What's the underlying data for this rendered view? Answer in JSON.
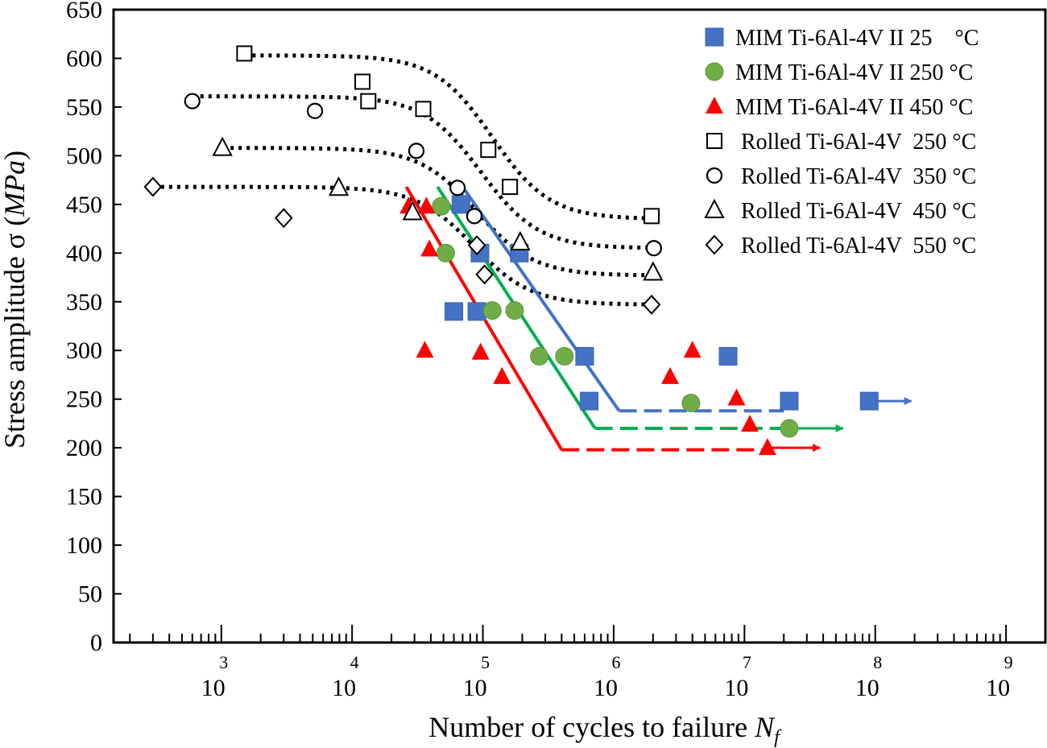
{
  "chart_data": {
    "type": "scatter",
    "xlabel": "Number of cycles to failure N_f",
    "xlabel_main": "Number of cycles to failure ",
    "xlabel_var": "N",
    "xlabel_sub": "f",
    "ylabel_main": "Stress amplitude σ (",
    "ylabel_var": "MPa",
    "ylabel_end": ")",
    "x_scale": "log",
    "xlim": [
      150,
      2000000000
    ],
    "ylim": [
      0,
      650
    ],
    "y_ticks": [
      {
        "v": 0,
        "label": "0"
      },
      {
        "v": 50,
        "label": "50"
      },
      {
        "v": 100,
        "label": "100"
      },
      {
        "v": 150,
        "label": "150"
      },
      {
        "v": 200,
        "label": "200"
      },
      {
        "v": 250,
        "label": "250"
      },
      {
        "v": 300,
        "label": "300"
      },
      {
        "v": 350,
        "label": "350"
      },
      {
        "v": 400,
        "label": "400"
      },
      {
        "v": 450,
        "label": "450"
      },
      {
        "v": 500,
        "label": "500"
      },
      {
        "v": 550,
        "label": "550"
      },
      {
        "v": 600,
        "label": "600"
      },
      {
        "v": 650,
        "label": "650"
      }
    ],
    "x_ticks": [
      {
        "v": 1000,
        "base": "10",
        "exp": "3"
      },
      {
        "v": 10000,
        "base": "10",
        "exp": "4"
      },
      {
        "v": 100000,
        "base": "10",
        "exp": "5"
      },
      {
        "v": 1000000,
        "base": "10",
        "exp": "6"
      },
      {
        "v": 10000000,
        "base": "10",
        "exp": "7"
      },
      {
        "v": 100000000,
        "base": "10",
        "exp": "8"
      },
      {
        "v": 1000000000,
        "base": "10",
        "exp": "9"
      }
    ],
    "legend_position": "top-right",
    "series": [
      {
        "name": "MIM Ti-6Al-4V II 25    °C",
        "marker": "square",
        "color": "#4472c4",
        "points": [
          [
            68000,
            450
          ],
          [
            95000,
            400
          ],
          [
            190000,
            400
          ],
          [
            60000,
            340
          ],
          [
            90000,
            340
          ],
          [
            600000,
            294
          ],
          [
            7500000,
            294
          ],
          [
            650000,
            248
          ],
          [
            22000000,
            248
          ],
          [
            90000000,
            248
          ]
        ]
      },
      {
        "name": "MIM Ti-6Al-4V II 250 °C",
        "marker": "circle",
        "color": "#70ad47",
        "points": [
          [
            48000,
            448
          ],
          [
            52000,
            400
          ],
          [
            118000,
            341
          ],
          [
            175000,
            341
          ],
          [
            270000,
            294
          ],
          [
            420000,
            294
          ],
          [
            3900000,
            246
          ],
          [
            22000000,
            220
          ]
        ]
      },
      {
        "name": "MIM Ti-6Al-4V II 450 °C",
        "marker": "triangle",
        "color": "#ff0000",
        "points": [
          [
            27000,
            448
          ],
          [
            37000,
            448
          ],
          [
            39000,
            404
          ],
          [
            36000,
            300
          ],
          [
            96000,
            298
          ],
          [
            140000,
            273
          ],
          [
            2700000,
            273
          ],
          [
            4000000,
            300
          ],
          [
            8700000,
            251
          ],
          [
            11000000,
            224
          ],
          [
            15000000,
            200
          ]
        ]
      },
      {
        "name": "Rolled Ti-6Al-4V  250 °C",
        "marker": "open-square",
        "color": "#000000",
        "points": [
          [
            1500,
            605
          ],
          [
            12000,
            576
          ],
          [
            13300,
            556
          ],
          [
            35000,
            548
          ],
          [
            110000,
            506
          ],
          [
            161000,
            468
          ],
          [
            1950000,
            438
          ]
        ]
      },
      {
        "name": "Rolled Ti-6Al-4V  350 °C",
        "marker": "open-circle",
        "color": "#000000",
        "points": [
          [
            600,
            556
          ],
          [
            5200,
            546
          ],
          [
            31000,
            505
          ],
          [
            64000,
            467
          ],
          [
            86000,
            438
          ],
          [
            2030000,
            405
          ]
        ]
      },
      {
        "name": "Rolled Ti-6Al-4V  450 °C",
        "marker": "open-triangle",
        "color": "#000000",
        "points": [
          [
            1020,
            508
          ],
          [
            7900,
            467
          ],
          [
            29000,
            442
          ],
          [
            193000,
            411
          ],
          [
            2000000,
            380
          ]
        ]
      },
      {
        "name": "Rolled Ti-6Al-4V  550 °C",
        "marker": "open-diamond",
        "color": "#000000",
        "points": [
          [
            300,
            468
          ],
          [
            3000,
            436
          ],
          [
            90000,
            408
          ],
          [
            103000,
            378
          ],
          [
            1950000,
            347
          ]
        ]
      }
    ],
    "trend_lines": [
      {
        "color": "#4472c4",
        "solid": [
          [
            70000,
            468
          ],
          [
            1100000,
            238
          ]
        ],
        "dashed": [
          [
            1100000,
            238
          ],
          [
            20000000,
            238
          ]
        ],
        "arrow": [
          [
            90000000,
            248
          ],
          [
            200000000,
            248
          ]
        ]
      },
      {
        "color": "#00b050",
        "solid": [
          [
            45000,
            468
          ],
          [
            720000,
            220
          ]
        ],
        "dashed": [
          [
            720000,
            220
          ],
          [
            22000000,
            220
          ]
        ],
        "arrow": [
          [
            22000000,
            220
          ],
          [
            60000000,
            220
          ]
        ]
      },
      {
        "color": "#ff0000",
        "solid": [
          [
            26000,
            468
          ],
          [
            400000,
            198
          ]
        ],
        "dashed": [
          [
            400000,
            198
          ],
          [
            15000000,
            198
          ]
        ],
        "arrow": [
          [
            15000000,
            200
          ],
          [
            40000000,
            200
          ]
        ]
      }
    ],
    "fit_curves": [
      {
        "color": "#000000",
        "lower": 435,
        "upper": 603,
        "center": 118000,
        "start": 1500,
        "end": 1950000
      },
      {
        "color": "#000000",
        "lower": 405,
        "upper": 561,
        "center": 97000,
        "start": 600,
        "end": 2030000
      },
      {
        "color": "#000000",
        "lower": 377,
        "upper": 508,
        "center": 90000,
        "start": 1020,
        "end": 2000000
      },
      {
        "color": "#000000",
        "lower": 347,
        "upper": 468,
        "center": 85000,
        "start": 300,
        "end": 1950000
      }
    ]
  }
}
